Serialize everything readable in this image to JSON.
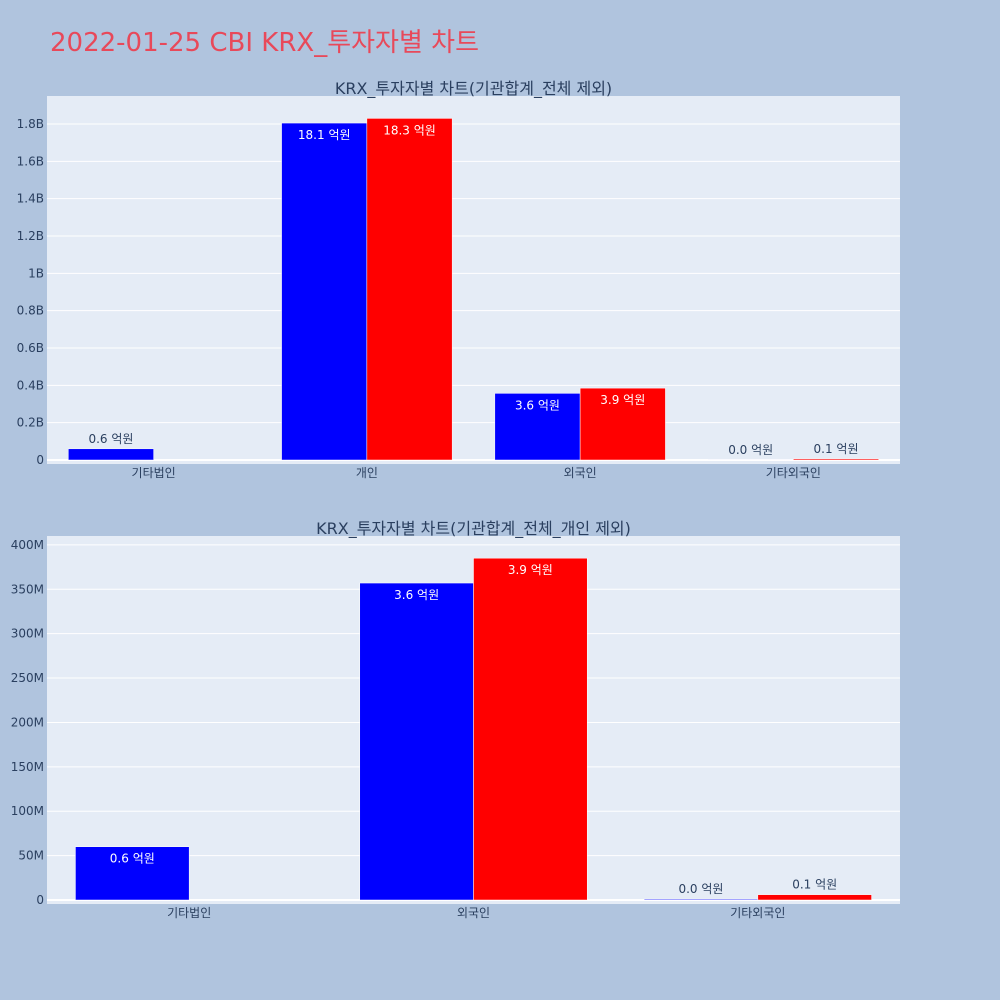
{
  "page_title": "2022-01-25 CBI KRX_투자자별 차트",
  "colors": {
    "page_background": "#b0c4de",
    "plot_background": "#e5ecf6",
    "title_color": "#e8495a",
    "series_blue": "#0000ff",
    "series_red": "#ff0000",
    "text_color": "#2a3f5f"
  },
  "chart_data": [
    {
      "type": "bar",
      "title": "KRX_투자자별 차트(기관합계_전체 제외)",
      "categories": [
        "기타법인",
        "개인",
        "외국인",
        "기타외국인"
      ],
      "series": [
        {
          "color": "#0000ff",
          "values": [
            60000000,
            1805000000,
            357000000,
            1000000
          ],
          "labels": [
            "0.6 억원",
            "18.1 억원",
            "3.6 억원",
            "0.0 억원"
          ]
        },
        {
          "color": "#ff0000",
          "values": [
            0,
            1830000000,
            385000000,
            6000000
          ],
          "labels": [
            "",
            "18.3 억원",
            "3.9 억원",
            "0.1 억원"
          ]
        }
      ],
      "yaxis": {
        "range": [
          0,
          1950000000
        ],
        "tick_values": [
          0,
          200000000,
          400000000,
          600000000,
          800000000,
          1000000000,
          1200000000,
          1400000000,
          1600000000,
          1800000000
        ],
        "tick_labels": [
          "0",
          "0.2B",
          "0.4B",
          "0.6B",
          "0.8B",
          "1B",
          "1.2B",
          "1.4B",
          "1.6B",
          "1.8B"
        ]
      },
      "grid": true,
      "legend": "none"
    },
    {
      "type": "bar",
      "title": "KRX_투자자별 차트(기관합계_전체_개인 제외)",
      "categories": [
        "기타법인",
        "외국인",
        "기타외국인"
      ],
      "series": [
        {
          "color": "#0000ff",
          "values": [
            60000000,
            357000000,
            1000000
          ],
          "labels": [
            "0.6 억원",
            "3.6 억원",
            "0.0 억원"
          ]
        },
        {
          "color": "#ff0000",
          "values": [
            0,
            385000000,
            6000000
          ],
          "labels": [
            "",
            "3.9 억원",
            "0.1 억원"
          ]
        }
      ],
      "yaxis": {
        "range": [
          0,
          410000000
        ],
        "tick_values": [
          0,
          50000000,
          100000000,
          150000000,
          200000000,
          250000000,
          300000000,
          350000000,
          400000000
        ],
        "tick_labels": [
          "0",
          "50M",
          "100M",
          "150M",
          "200M",
          "250M",
          "300M",
          "350M",
          "400M"
        ]
      },
      "grid": true,
      "legend": "none"
    }
  ]
}
